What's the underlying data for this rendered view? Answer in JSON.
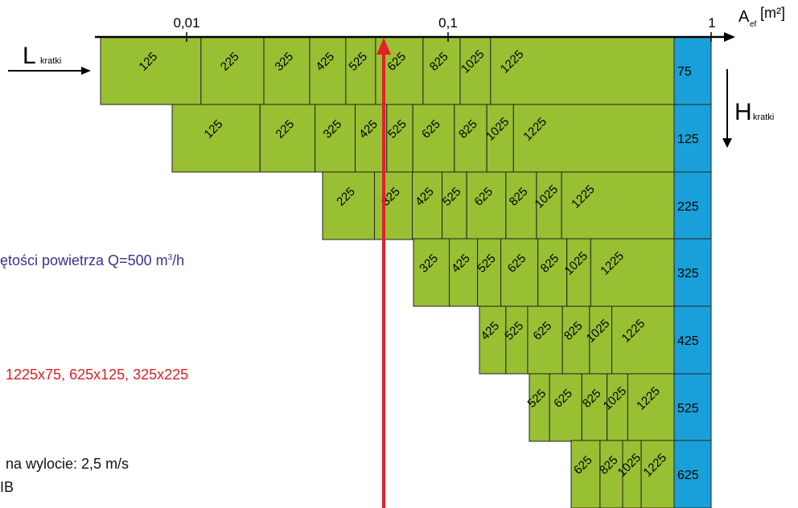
{
  "axis": {
    "ticks": [
      "0,01",
      "0,1",
      "1"
    ],
    "label_main": "A",
    "label_sub": "ef",
    "label_unit": "[m²]"
  },
  "l_label": {
    "main": "L",
    "sub": "kratki"
  },
  "h_label": {
    "main": "H",
    "sub": "kratki"
  },
  "colors": {
    "cell": "#99bf33",
    "height_cell": "#1aa0d8",
    "marker": "#e0202a",
    "note_blue": "#3a3290",
    "note_red": "#d8202a"
  },
  "rows": [
    {
      "height": "75",
      "lengths": [
        "125",
        "225",
        "325",
        "425",
        "525",
        "625",
        "825",
        "1025",
        "1225"
      ]
    },
    {
      "height": "125",
      "lengths": [
        "125",
        "225",
        "325",
        "425",
        "525",
        "625",
        "825",
        "1025",
        "1225"
      ]
    },
    {
      "height": "225",
      "lengths": [
        "225",
        "325",
        "425",
        "525",
        "625",
        "825",
        "1025",
        "1225"
      ]
    },
    {
      "height": "325",
      "lengths": [
        "325",
        "425",
        "525",
        "625",
        "825",
        "1025",
        "1225"
      ]
    },
    {
      "height": "425",
      "lengths": [
        "425",
        "525",
        "625",
        "825",
        "1025",
        "1225"
      ]
    },
    {
      "height": "525",
      "lengths": [
        "525",
        "625",
        "825",
        "1025",
        "1225"
      ]
    },
    {
      "height": "625",
      "lengths": [
        "625",
        "825",
        "1025",
        "1225"
      ]
    }
  ],
  "notes": {
    "flow_text": "ętości powietrza Q=500 m",
    "flow_sup": "3",
    "flow_tail": "/h",
    "sizes": "1225x75, 625x125, 325x225",
    "velocity": "na wylocie: 2,5 m/s",
    "db": "IB"
  }
}
